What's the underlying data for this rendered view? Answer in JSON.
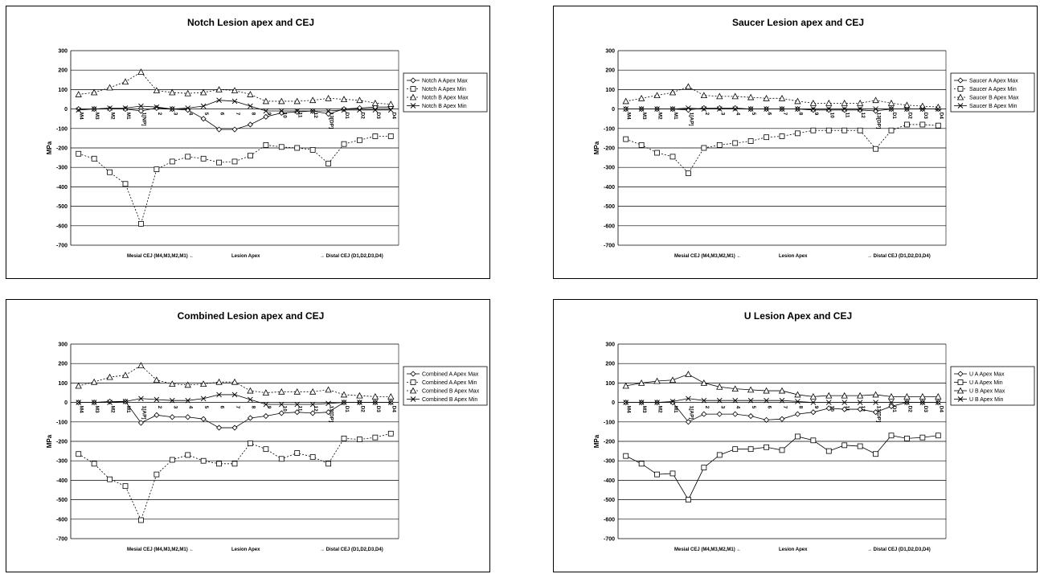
{
  "chart_data": [
    {
      "type": "line",
      "title": "Notch Lesion apex and CEJ",
      "xlabel": "",
      "ylabel": "MPa",
      "ylim": [
        -700,
        300
      ],
      "yticks": [
        300,
        200,
        100,
        0,
        -100,
        -200,
        -300,
        -400,
        -500,
        -600,
        -700
      ],
      "grid": true,
      "legend": "right",
      "categories": [
        "M4",
        "M3",
        "M2",
        "M1",
        "1[NP]",
        "2",
        "3",
        "4",
        "5",
        "6",
        "7",
        "8",
        "9",
        "10",
        "11",
        "12",
        "13[DP]",
        "D1",
        "D2",
        "D3",
        "D4"
      ],
      "footer_labels": [
        "Mesial CEJ (M4,M3,M2,M1) ←",
        "Lesion Apex",
        "→ Distal CEJ (D1,D2,D3,D4)"
      ],
      "series": [
        {
          "name": "Notch A Apex Max",
          "marker": "diamond",
          "dash": "solid",
          "values": [
            0,
            0,
            0,
            0,
            -10,
            5,
            0,
            -5,
            -50,
            -105,
            -105,
            -80,
            -40,
            -20,
            -15,
            -10,
            -25,
            0,
            5,
            10,
            10
          ]
        },
        {
          "name": "Notch A Apex Min",
          "marker": "square",
          "dash": "dashed",
          "values": [
            -230,
            -255,
            -325,
            -385,
            -590,
            -310,
            -270,
            -245,
            -255,
            -275,
            -270,
            -240,
            -185,
            -195,
            -200,
            -210,
            -280,
            -180,
            -160,
            -140,
            -140
          ]
        },
        {
          "name": "Notch B Apex Max",
          "marker": "triangle",
          "dash": "dashed",
          "values": [
            75,
            85,
            110,
            140,
            190,
            95,
            85,
            80,
            85,
            100,
            95,
            75,
            40,
            40,
            40,
            45,
            55,
            50,
            45,
            30,
            25
          ]
        },
        {
          "name": "Notch B Apex Min",
          "marker": "x",
          "dash": "solid",
          "values": [
            -5,
            0,
            5,
            5,
            15,
            10,
            0,
            5,
            15,
            45,
            40,
            15,
            -10,
            -10,
            -10,
            -10,
            -10,
            -5,
            -5,
            -5,
            -5
          ]
        }
      ]
    },
    {
      "type": "line",
      "title": "Saucer Lesion apex and CEJ",
      "xlabel": "",
      "ylabel": "MPa",
      "ylim": [
        -700,
        300
      ],
      "yticks": [
        300,
        200,
        100,
        0,
        -100,
        -200,
        -300,
        -400,
        -500,
        -600,
        -700
      ],
      "grid": true,
      "legend": "right",
      "categories": [
        "M4",
        "M3",
        "M2",
        "M1",
        "1[AP]",
        "2",
        "3",
        "4",
        "5",
        "6",
        "7",
        "8",
        "9",
        "10",
        "11",
        "12",
        "13[DP]",
        "D1",
        "D2",
        "D3",
        "D4"
      ],
      "footer_labels": [
        "Mesial CEJ (M4,M3,M2,M1) ←",
        "Lesion Apex",
        "→ Distal CEJ (D1,D2,D3,D4)"
      ],
      "series": [
        {
          "name": "Saucer A Apex Max",
          "marker": "diamond",
          "dash": "solid",
          "values": [
            0,
            0,
            0,
            0,
            -5,
            5,
            5,
            5,
            0,
            0,
            0,
            0,
            -5,
            -5,
            -5,
            -5,
            -10,
            0,
            0,
            0,
            0
          ]
        },
        {
          "name": "Saucer A Apex Min",
          "marker": "square",
          "dash": "dashed",
          "values": [
            -155,
            -185,
            -225,
            -245,
            -330,
            -200,
            -185,
            -175,
            -165,
            -145,
            -140,
            -125,
            -110,
            -110,
            -110,
            -110,
            -205,
            -110,
            -80,
            -80,
            -85
          ]
        },
        {
          "name": "Saucer B Apex Max",
          "marker": "triangle",
          "dash": "dashed",
          "values": [
            40,
            55,
            70,
            85,
            115,
            70,
            65,
            65,
            60,
            55,
            55,
            40,
            30,
            30,
            30,
            30,
            45,
            30,
            20,
            15,
            10
          ]
        },
        {
          "name": "Saucer B Apex Min",
          "marker": "x",
          "dash": "solid",
          "values": [
            0,
            0,
            0,
            0,
            5,
            0,
            0,
            0,
            0,
            0,
            0,
            0,
            0,
            0,
            0,
            0,
            0,
            0,
            0,
            0,
            0
          ]
        }
      ]
    },
    {
      "type": "line",
      "title": "Combined Lesion apex and CEJ",
      "xlabel": "",
      "ylabel": "MPa",
      "ylim": [
        -700,
        300
      ],
      "yticks": [
        300,
        200,
        100,
        0,
        -100,
        -200,
        -300,
        -400,
        -500,
        -600,
        -700
      ],
      "grid": true,
      "legend": "right",
      "categories": [
        "M4",
        "M3",
        "M2",
        "M1",
        "1[AP]",
        "2",
        "3",
        "4",
        "5",
        "6",
        "7",
        "8",
        "9",
        "10",
        "11",
        "12",
        "13[DP]",
        "D1",
        "D2",
        "D3",
        "D4"
      ],
      "footer_labels": [
        "Mesial CEJ (M4,M3,M2,M1) ←",
        "Lesion Apex",
        "→ Distal CEJ (D1,D2,D3,D4)"
      ],
      "series": [
        {
          "name": "Combined A Apex Max",
          "marker": "diamond",
          "dash": "solid",
          "values": [
            0,
            0,
            5,
            5,
            -105,
            -65,
            -75,
            -75,
            -85,
            -130,
            -130,
            -80,
            -70,
            -55,
            -50,
            -55,
            -50,
            0,
            0,
            0,
            0
          ]
        },
        {
          "name": "Combined A Apex Min",
          "marker": "square",
          "dash": "dashed",
          "values": [
            -265,
            -315,
            -395,
            -430,
            -605,
            -370,
            -295,
            -270,
            -300,
            -315,
            -315,
            -210,
            -240,
            -290,
            -260,
            -280,
            -315,
            -185,
            -190,
            -180,
            -160
          ]
        },
        {
          "name": "Combined B Apex Max",
          "marker": "triangle",
          "dash": "dashed",
          "values": [
            85,
            105,
            130,
            140,
            190,
            115,
            95,
            90,
            95,
            105,
            105,
            60,
            50,
            55,
            55,
            55,
            65,
            40,
            35,
            30,
            30
          ]
        },
        {
          "name": "Combined B Apex Min",
          "marker": "x",
          "dash": "solid",
          "values": [
            0,
            0,
            0,
            5,
            20,
            15,
            10,
            10,
            20,
            40,
            40,
            15,
            -10,
            -10,
            -10,
            -10,
            -5,
            0,
            0,
            0,
            0
          ]
        }
      ]
    },
    {
      "type": "line",
      "title": "U Lesion Apex and CEJ",
      "xlabel": "",
      "ylabel": "MPa",
      "ylim": [
        -700,
        300
      ],
      "yticks": [
        300,
        200,
        100,
        0,
        -100,
        -200,
        -300,
        -400,
        -500,
        -600,
        -700
      ],
      "grid": true,
      "legend": "right",
      "categories": [
        "M4",
        "M3",
        "M2",
        "M1",
        "1[AP]",
        "2",
        "3",
        "4",
        "5",
        "6",
        "7",
        "8",
        "9",
        "10",
        "11",
        "12",
        "13[DP]",
        "D1",
        "D2",
        "D3",
        "D4"
      ],
      "footer_labels": [
        "Mesial CEJ (M4,M3,M2,M1) ←",
        "Lesion Apex",
        "→ Distal CEJ (D1,D2,D3,D4)"
      ],
      "series": [
        {
          "name": "U A Apex Max",
          "marker": "diamond",
          "dash": "solid",
          "values": [
            0,
            0,
            0,
            0,
            -100,
            -60,
            -60,
            -60,
            -70,
            -90,
            -85,
            -60,
            -50,
            -30,
            -35,
            -35,
            -50,
            -20,
            0,
            0,
            0
          ]
        },
        {
          "name": "U A Apex Min",
          "marker": "square",
          "dash": "solid",
          "values": [
            -275,
            -315,
            -370,
            -365,
            -500,
            -335,
            -270,
            -240,
            -240,
            -230,
            -245,
            -175,
            -195,
            -250,
            -220,
            -225,
            -265,
            -170,
            -185,
            -180,
            -170
          ]
        },
        {
          "name": "U B Apex Max",
          "marker": "triangle",
          "dash": "solid",
          "values": [
            85,
            100,
            110,
            115,
            145,
            100,
            80,
            70,
            65,
            60,
            60,
            40,
            30,
            35,
            35,
            35,
            40,
            30,
            30,
            30,
            30
          ]
        },
        {
          "name": "U B Apex Min",
          "marker": "x",
          "dash": "solid",
          "values": [
            0,
            0,
            0,
            5,
            20,
            10,
            10,
            10,
            10,
            10,
            10,
            5,
            0,
            0,
            0,
            0,
            0,
            0,
            0,
            0,
            0
          ]
        }
      ]
    }
  ]
}
